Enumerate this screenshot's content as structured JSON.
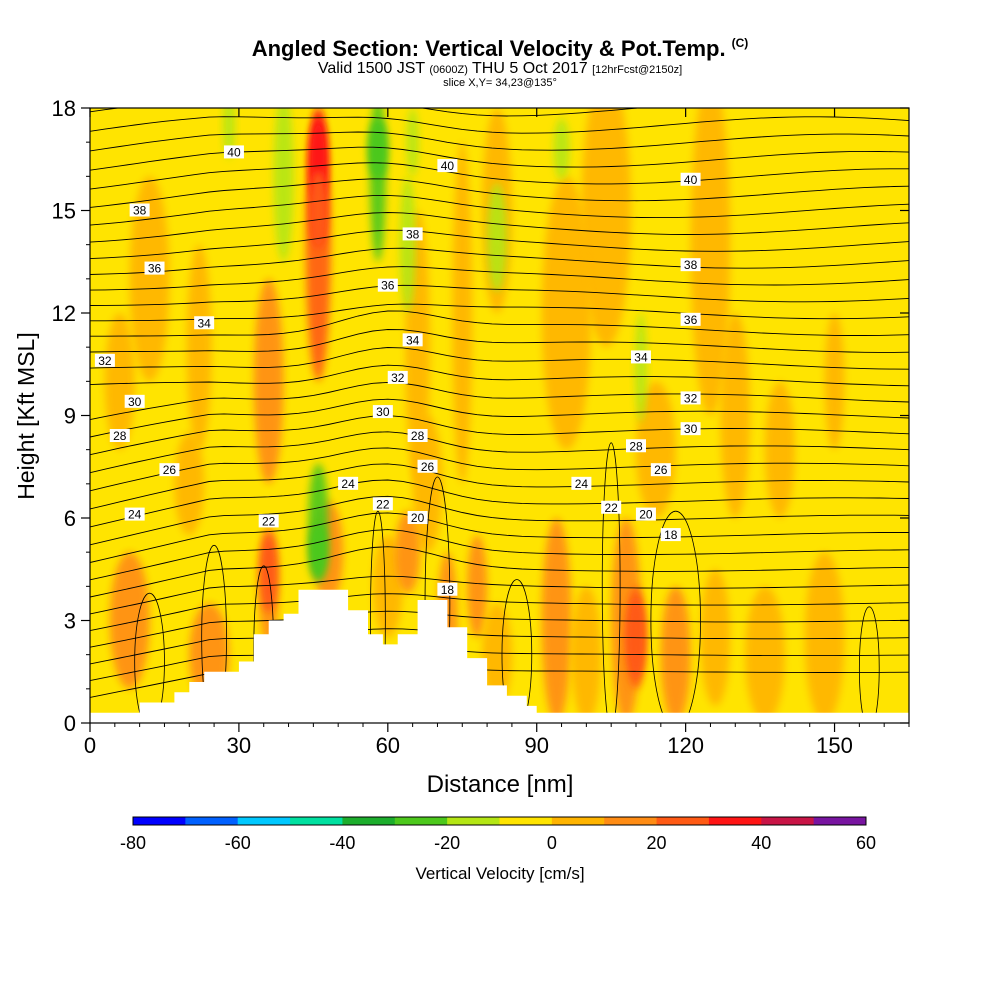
{
  "header": {
    "title": "Angled Section: Vertical Velocity & Pot.Temp.",
    "title_suffix": "(C)",
    "valid_prefix": "Valid 1500 JST",
    "valid_utc": "(0600Z)",
    "valid_date": "THU 5 Oct 2017",
    "forecast": "[12hrFcst@2150z]",
    "slice": "slice X,Y= 34,23@135°"
  },
  "chart_data": {
    "type": "contour",
    "xlabel": "Distance [nm]",
    "ylabel": "Height [Kft MSL]",
    "xlim": [
      0,
      165
    ],
    "ylim": [
      0,
      18
    ],
    "xticks": [
      0,
      30,
      60,
      90,
      120,
      150
    ],
    "yticks": [
      0,
      3,
      6,
      9,
      12,
      15,
      18
    ],
    "colorbar": {
      "label": "Vertical Velocity [cm/s]",
      "tick_labels": [
        -80,
        -60,
        -40,
        -20,
        0,
        20,
        40,
        60
      ],
      "levels": [
        -80,
        -70,
        -60,
        -50,
        -40,
        -30,
        -20,
        -10,
        0,
        10,
        20,
        30,
        40,
        50,
        60
      ],
      "colors": [
        "#0000ff",
        "#0060ff",
        "#00c8ff",
        "#00e0a0",
        "#1cad2c",
        "#4cc81c",
        "#b4e614",
        "#ffe400",
        "#ffb400",
        "#ff8c14",
        "#ff5a14",
        "#ff1414",
        "#c81446",
        "#7814a0"
      ]
    },
    "terrain_kft": [
      [
        0,
        0.3
      ],
      [
        10,
        0.6
      ],
      [
        17,
        0.9
      ],
      [
        20,
        1.2
      ],
      [
        23,
        1.5
      ],
      [
        30,
        1.8
      ],
      [
        33,
        2.6
      ],
      [
        36,
        3.0
      ],
      [
        39,
        3.2
      ],
      [
        42,
        3.9
      ],
      [
        52,
        3.3
      ],
      [
        56,
        2.6
      ],
      [
        59,
        2.3
      ],
      [
        62,
        2.6
      ],
      [
        66,
        3.6
      ],
      [
        72,
        2.8
      ],
      [
        76,
        1.9
      ],
      [
        80,
        1.1
      ],
      [
        84,
        0.8
      ],
      [
        88,
        0.5
      ],
      [
        90,
        0.3
      ],
      [
        165,
        0.3
      ]
    ],
    "updraft_features": [
      {
        "x": 46,
        "y": 16.5,
        "w": 30,
        "color": "#ff1414"
      },
      {
        "x": 46,
        "y": 15.0,
        "w": 30,
        "color": "#ff5a14"
      },
      {
        "x": 36,
        "y": 4.4,
        "w": 20,
        "color": "#ff5a14"
      },
      {
        "x": 110,
        "y": 2.5,
        "w": 20,
        "color": "#ff5a14"
      },
      {
        "x": 46,
        "y": 5.0,
        "w": -30,
        "color": "#4cc81c"
      },
      {
        "x": 58,
        "y": 16.8,
        "w": -30,
        "color": "#4cc81c"
      }
    ],
    "isentrope_labels": [
      {
        "v": "40",
        "x": 29,
        "y": 16.7
      },
      {
        "v": "40",
        "x": 72,
        "y": 16.3
      },
      {
        "v": "40",
        "x": 121,
        "y": 15.9
      },
      {
        "v": "38",
        "x": 10,
        "y": 15.0
      },
      {
        "v": "38",
        "x": 65,
        "y": 14.3
      },
      {
        "v": "38",
        "x": 121,
        "y": 13.4
      },
      {
        "v": "36",
        "x": 13,
        "y": 13.3
      },
      {
        "v": "36",
        "x": 60,
        "y": 12.8
      },
      {
        "v": "36",
        "x": 121,
        "y": 11.8
      },
      {
        "v": "34",
        "x": 23,
        "y": 11.7
      },
      {
        "v": "34",
        "x": 65,
        "y": 11.2
      },
      {
        "v": "34",
        "x": 111,
        "y": 10.7
      },
      {
        "v": "32",
        "x": 3,
        "y": 10.6
      },
      {
        "v": "32",
        "x": 62,
        "y": 10.1
      },
      {
        "v": "32",
        "x": 121,
        "y": 9.5
      },
      {
        "v": "30",
        "x": 9,
        "y": 9.4
      },
      {
        "v": "30",
        "x": 59,
        "y": 9.1
      },
      {
        "v": "30",
        "x": 121,
        "y": 8.6
      },
      {
        "v": "28",
        "x": 6,
        "y": 8.4
      },
      {
        "v": "28",
        "x": 66,
        "y": 8.4
      },
      {
        "v": "28",
        "x": 110,
        "y": 8.1
      },
      {
        "v": "26",
        "x": 16,
        "y": 7.4
      },
      {
        "v": "26",
        "x": 68,
        "y": 7.5
      },
      {
        "v": "26",
        "x": 115,
        "y": 7.4
      },
      {
        "v": "24",
        "x": 9,
        "y": 6.1
      },
      {
        "v": "24",
        "x": 52,
        "y": 7.0
      },
      {
        "v": "24",
        "x": 99,
        "y": 7.0
      },
      {
        "v": "22",
        "x": 36,
        "y": 5.9
      },
      {
        "v": "22",
        "x": 59,
        "y": 6.4
      },
      {
        "v": "22",
        "x": 105,
        "y": 6.3
      },
      {
        "v": "20",
        "x": 66,
        "y": 6.0
      },
      {
        "v": "20",
        "x": 112,
        "y": 6.1
      },
      {
        "v": "18",
        "x": 72,
        "y": 3.9
      },
      {
        "v": "18",
        "x": 117,
        "y": 5.5
      }
    ]
  }
}
